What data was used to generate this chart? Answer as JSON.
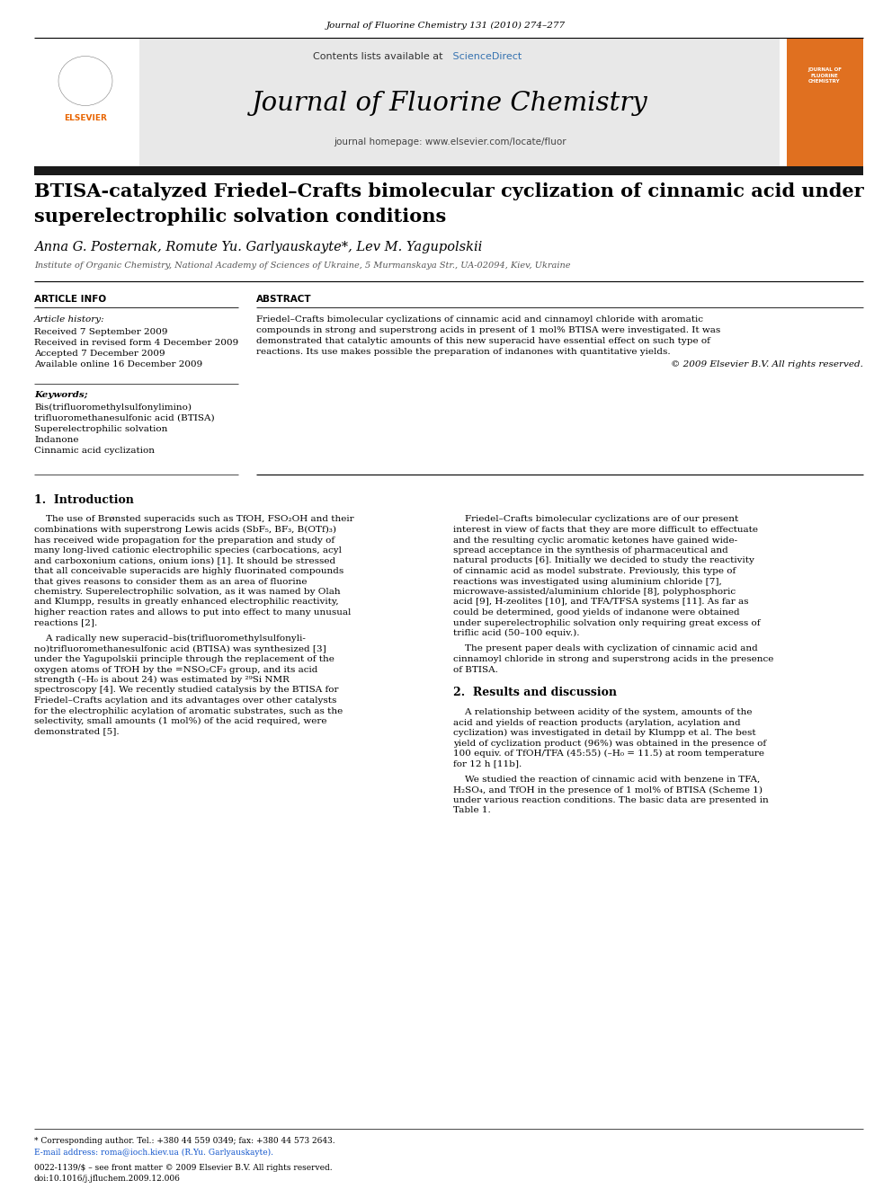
{
  "journal_citation": "Journal of Fluorine Chemistry 131 (2010) 274–277",
  "contents_text": "Contents lists available at",
  "sciencedirect_text": "ScienceDirect",
  "journal_name": "Journal of Fluorine Chemistry",
  "journal_homepage": "journal homepage: www.elsevier.com/locate/fluor",
  "article_title_line1": "BTISA-catalyzed Friedel–Crafts bimolecular cyclization of cinnamic acid under",
  "article_title_line2": "superelectrophilic solvation conditions",
  "authors": "Anna G. Posternak, Romute Yu. Garlyauskayte*, Lev M. Yagupolskii",
  "affiliation": "Institute of Organic Chemistry, National Academy of Sciences of Ukraine, 5 Murmanskaya Str., UA-02094, Kiev, Ukraine",
  "article_info_header": "ARTICLE INFO",
  "abstract_header": "ABSTRACT",
  "article_history_label": "Article history:",
  "received1": "Received 7 September 2009",
  "received2": "Received in revised form 4 December 2009",
  "accepted": "Accepted 7 December 2009",
  "available": "Available online 16 December 2009",
  "keywords_label": "Keywords;",
  "kw1": "Bis(trifluoromethylsulfonylimino)",
  "kw2": "trifluoromethanesulfonic acid (BTISA)",
  "kw3": "Superelectrophilic solvation",
  "kw4": "Indanone",
  "kw5": "Cinnamic acid cyclization",
  "abstract_text_lines": [
    "Friedel–Crafts bimolecular cyclizations of cinnamic acid and cinnamoyl chloride with aromatic",
    "compounds in strong and superstrong acids in present of 1 mol% BTISA were investigated. It was",
    "demonstrated that catalytic amounts of this new superacid have essential effect on such type of",
    "reactions. Its use makes possible the preparation of indanones with quantitative yields."
  ],
  "copyright": "© 2009 Elsevier B.V. All rights reserved.",
  "section1_title": "1.  Introduction",
  "intro1_lines": [
    "    The use of Brønsted superacids such as TfOH, FSO₂OH and their",
    "combinations with superstrong Lewis acids (SbF₅, BF₃, B(OTf)₃)",
    "has received wide propagation for the preparation and study of",
    "many long-lived cationic electrophilic species (carbocations, acyl",
    "and carboxonium cations, onium ions) [1]. It should be stressed",
    "that all conceivable superacids are highly fluorinated compounds",
    "that gives reasons to consider them as an area of fluorine",
    "chemistry. Superelectrophilic solvation, as it was named by Olah",
    "and Klumpp, results in greatly enhanced electrophilic reactivity,",
    "higher reaction rates and allows to put into effect to many unusual",
    "reactions [2]."
  ],
  "intro2_lines": [
    "    A radically new superacid–bis(trifluoromethylsulfonyli-",
    "no)trifluoromethanesulfonic acid (BTISA) was synthesized [3]",
    "under the Yagupolskii principle through the replacement of the",
    "oxygen atoms of TfOH by the =NSO₂CF₃ group, and its acid",
    "strength (–H₀ is about 24) was estimated by ²⁹Si NMR",
    "spectroscopy [4]. We recently studied catalysis by the BTISA for",
    "Friedel–Crafts acylation and its advantages over other catalysts",
    "for the electrophilic acylation of aromatic substrates, such as the",
    "selectivity, small amounts (1 mol%) of the acid required, were",
    "demonstrated [5]."
  ],
  "right1_lines": [
    "    Friedel–Crafts bimolecular cyclizations are of our present",
    "interest in view of facts that they are more difficult to effectuate",
    "and the resulting cyclic aromatic ketones have gained wide-",
    "spread acceptance in the synthesis of pharmaceutical and",
    "natural products [6]. Initially we decided to study the reactivity",
    "of cinnamic acid as model substrate. Previously, this type of",
    "reactions was investigated using aluminium chloride [7],",
    "microwave-assisted/aluminium chloride [8], polyphosphoric",
    "acid [9], H-zeolites [10], and TFA/TFSA systems [11]. As far as",
    "could be determined, good yields of indanone were obtained",
    "under superelectrophilic solvation only requiring great excess of",
    "triflic acid (50–100 equiv.)."
  ],
  "right2_lines": [
    "    The present paper deals with cyclization of cinnamic acid and",
    "cinnamoyl chloride in strong and superstrong acids in the presence",
    "of BTISA."
  ],
  "section2_title": "2.  Results and discussion",
  "results1_lines": [
    "    A relationship between acidity of the system, amounts of the",
    "acid and yields of reaction products (arylation, acylation and",
    "cyclization) was investigated in detail by Klumpp et al. The best",
    "yield of cyclization product (96%) was obtained in the presence of",
    "100 equiv. of TfOH/TFA (45:55) (–H₀ = 11.5) at room temperature",
    "for 12 h [11b]."
  ],
  "results2_lines": [
    "    We studied the reaction of cinnamic acid with benzene in TFA,",
    "H₂SO₄, and TfOH in the presence of 1 mol% of BTISA (Scheme 1)",
    "under various reaction conditions. The basic data are presented in",
    "Table 1."
  ],
  "footer_line1": "* Corresponding author. Tel.: +380 44 559 0349; fax: +380 44 573 2643.",
  "footer_line2": "E-mail address: roma@ioch.kiev.ua (R.Yu. Garlyauskayte).",
  "footer_line3": "0022-1139/$ – see front matter © 2009 Elsevier B.V. All rights reserved.",
  "footer_line4": "doi:10.1016/j.jfluchem.2009.12.006",
  "bg_color": "#ffffff",
  "header_bg": "#e8e8e8",
  "elsevier_orange": "#e86400",
  "link_color": "#1155cc",
  "sciencedirect_color": "#3572b0"
}
